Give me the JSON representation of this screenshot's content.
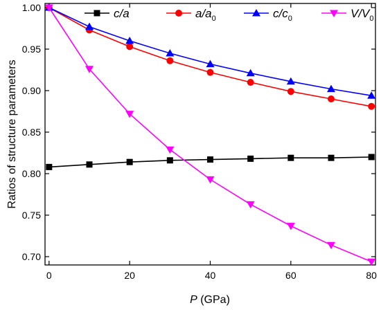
{
  "chart_data": {
    "type": "line",
    "x": [
      0,
      10,
      20,
      30,
      40,
      50,
      60,
      70,
      80
    ],
    "xlabel_var": "P",
    "xlabel_unit": "(GPa)",
    "ylabel": "Ratios of structure parameters",
    "xlim": [
      -1,
      81
    ],
    "ylim": [
      0.69,
      1.005
    ],
    "xticks": [
      "0",
      "20",
      "40",
      "60",
      "80"
    ],
    "yticks": [
      "0.70",
      "0.75",
      "0.80",
      "0.85",
      "0.90",
      "0.95",
      "1.00"
    ],
    "legend_position": "top",
    "grid": false,
    "series": [
      {
        "name": "c/a",
        "name_parts": [
          "c/a",
          ""
        ],
        "color": "#000000",
        "marker": "square",
        "values": [
          0.808,
          0.811,
          0.814,
          0.816,
          0.817,
          0.818,
          0.819,
          0.819,
          0.82
        ]
      },
      {
        "name": "a/a0",
        "name_parts": [
          "a/a",
          "0"
        ],
        "color": "#ff0000",
        "marker": "circle",
        "values": [
          1.0,
          0.973,
          0.953,
          0.936,
          0.922,
          0.91,
          0.899,
          0.89,
          0.881
        ]
      },
      {
        "name": "c/c0",
        "name_parts": [
          "c/c",
          "0"
        ],
        "color": "#0000ff",
        "marker": "triangle-up",
        "values": [
          1.0,
          0.977,
          0.96,
          0.945,
          0.932,
          0.921,
          0.911,
          0.902,
          0.894
        ]
      },
      {
        "name": "V/V0",
        "name_parts": [
          "V/V",
          "0"
        ],
        "color": "#ff00ff",
        "marker": "triangle-down",
        "values": [
          1.0,
          0.926,
          0.872,
          0.829,
          0.793,
          0.763,
          0.737,
          0.714,
          0.694
        ]
      }
    ]
  }
}
